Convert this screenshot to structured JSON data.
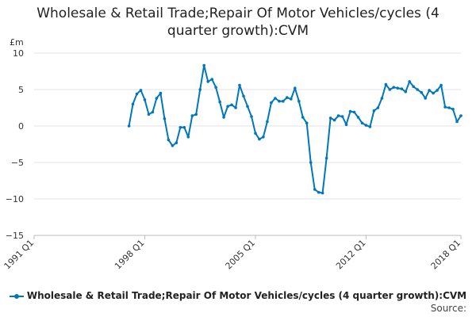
{
  "chart_data": {
    "type": "line",
    "title_lines": [
      "Wholesale & Retail Trade;Repair Of Motor Vehicles/cycles (4",
      "quarter growth):CVM"
    ],
    "y_unit": "£m",
    "ylim": [
      -15,
      10
    ],
    "y_ticks": [
      10,
      5,
      0,
      -5,
      -10,
      -15
    ],
    "xlim": [
      1991.0,
      2018.0
    ],
    "x_ticks": [
      {
        "label": "1991 Q1",
        "value": 1991.0
      },
      {
        "label": "1998 Q1",
        "value": 1998.0
      },
      {
        "label": "2005 Q1",
        "value": 2005.0
      },
      {
        "label": "2012 Q1",
        "value": 2012.0
      },
      {
        "label": "2018 Q1",
        "value": 2018.0
      }
    ],
    "grid": true,
    "legend_position": "bottom",
    "series": [
      {
        "name": "Wholesale & Retail Trade;Repair Of Motor Vehicles/cycles (4 quarter growth):CVM",
        "color": "#0077bb",
        "x": [
          1997.0,
          1997.25,
          1997.5,
          1997.75,
          1998.0,
          1998.25,
          1998.5,
          1998.75,
          1999.0,
          1999.25,
          1999.5,
          1999.75,
          2000.0,
          2000.25,
          2000.5,
          2000.75,
          2001.0,
          2001.25,
          2001.5,
          2001.75,
          2002.0,
          2002.25,
          2002.5,
          2002.75,
          2003.0,
          2003.25,
          2003.5,
          2003.75,
          2004.0,
          2004.25,
          2004.5,
          2004.75,
          2005.0,
          2005.25,
          2005.5,
          2005.75,
          2006.0,
          2006.25,
          2006.5,
          2006.75,
          2007.0,
          2007.25,
          2007.5,
          2007.75,
          2008.0,
          2008.25,
          2008.5,
          2008.75,
          2009.0,
          2009.25,
          2009.5,
          2009.75,
          2010.0,
          2010.25,
          2010.5,
          2010.75,
          2011.0,
          2011.25,
          2011.5,
          2011.75,
          2012.0,
          2012.25,
          2012.5,
          2012.75,
          2013.0,
          2013.25,
          2013.5,
          2013.75,
          2014.0,
          2014.25,
          2014.5,
          2014.75,
          2015.0,
          2015.25,
          2015.5,
          2015.75,
          2016.0,
          2016.25,
          2016.5,
          2016.75,
          2017.0,
          2017.25,
          2017.5,
          2017.75,
          2018.0
        ],
        "values": [
          0.0,
          3.0,
          4.4,
          4.9,
          3.6,
          1.6,
          1.9,
          3.8,
          4.5,
          1.0,
          -1.9,
          -2.7,
          -2.3,
          -0.2,
          -0.2,
          -1.5,
          1.4,
          1.6,
          5.0,
          8.3,
          6.1,
          6.4,
          5.3,
          3.3,
          1.2,
          2.7,
          2.9,
          2.5,
          5.6,
          4.1,
          2.7,
          1.3,
          -1.0,
          -1.8,
          -1.5,
          0.6,
          3.2,
          3.8,
          3.4,
          3.4,
          3.9,
          3.7,
          5.2,
          3.4,
          1.2,
          0.4,
          -5.0,
          -8.7,
          -9.1,
          -9.2,
          -4.4,
          1.1,
          0.8,
          1.4,
          1.3,
          0.2,
          2.0,
          1.9,
          1.2,
          0.4,
          0.1,
          -0.1,
          2.1,
          2.5,
          3.8,
          5.7,
          5.0,
          5.3,
          5.2,
          5.1,
          4.7,
          6.1,
          5.4,
          5.0,
          4.6,
          3.8,
          4.9,
          4.5,
          4.9,
          5.6,
          2.6,
          2.5,
          2.3,
          0.6,
          1.4
        ]
      }
    ]
  },
  "source_label": "Source:"
}
